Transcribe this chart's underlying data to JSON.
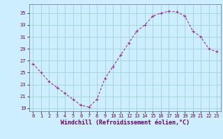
{
  "x": [
    0,
    1,
    2,
    3,
    4,
    5,
    6,
    7,
    8,
    9,
    10,
    11,
    12,
    13,
    14,
    15,
    16,
    17,
    18,
    19,
    20,
    21,
    22,
    23
  ],
  "y": [
    26.5,
    25.0,
    23.5,
    22.5,
    21.5,
    20.5,
    19.5,
    19.2,
    20.5,
    24.0,
    26.0,
    28.0,
    30.0,
    32.0,
    33.0,
    34.5,
    35.0,
    35.3,
    35.2,
    34.5,
    32.0,
    31.0,
    29.0,
    28.5
  ],
  "line_color": "#993399",
  "marker": "+",
  "bg_color": "#cceeff",
  "grid_color": "#99cccc",
  "xlabel": "Windchill (Refroidissement éolien,°C)",
  "xlim": [
    -0.5,
    23.5
  ],
  "ylim": [
    18.5,
    36.5
  ],
  "yticks": [
    19,
    21,
    23,
    25,
    27,
    29,
    31,
    33,
    35
  ],
  "xticks": [
    0,
    1,
    2,
    3,
    4,
    5,
    6,
    7,
    8,
    9,
    10,
    11,
    12,
    13,
    14,
    15,
    16,
    17,
    18,
    19,
    20,
    21,
    22,
    23
  ],
  "tick_fontsize": 5.0,
  "xlabel_fontsize": 6.0,
  "line_width": 0.8,
  "marker_size": 3.5
}
